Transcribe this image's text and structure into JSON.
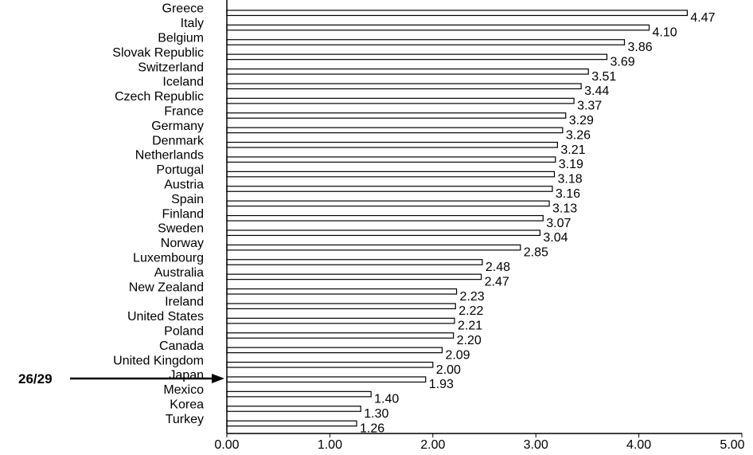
{
  "chart_data": {
    "type": "bar",
    "orientation": "horizontal",
    "categories": [
      "Greece",
      "Italy",
      "Belgium",
      "Slovak Republic",
      "Switzerland",
      "Iceland",
      "Czech Republic",
      "France",
      "Germany",
      "Denmark",
      "Netherlands",
      "Portugal",
      "Austria",
      "Spain",
      "Finland",
      "Sweden",
      "Norway",
      "Luxembourg",
      "Australia",
      "New Zealand",
      "Ireland",
      "United States",
      "Poland",
      "Canada",
      "United Kingdom",
      "Japan",
      "Mexico",
      "Korea",
      "Turkey"
    ],
    "values": [
      4.47,
      4.1,
      3.86,
      3.69,
      3.51,
      3.44,
      3.37,
      3.29,
      3.26,
      3.21,
      3.19,
      3.18,
      3.16,
      3.13,
      3.07,
      3.04,
      2.85,
      2.48,
      2.47,
      2.23,
      2.22,
      2.21,
      2.2,
      2.09,
      2.0,
      1.93,
      1.4,
      1.3,
      1.26
    ],
    "value_labels": [
      "4.47",
      "4.10",
      "3.86",
      "3.69",
      "3.51",
      "3.44",
      "3.37",
      "3.29",
      "3.26",
      "3.21",
      "3.19",
      "3.18",
      "3.16",
      "3.13",
      "3.07",
      "3.04",
      "2.85",
      "2.48",
      "2.47",
      "2.23",
      "2.22",
      "2.21",
      "2.20",
      "2.09",
      "2.00",
      "1.93",
      "1.40",
      "1.30",
      "1.26"
    ],
    "xlim": [
      0,
      5
    ],
    "x_ticks": [
      "0.00",
      "1.00",
      "2.00",
      "3.00",
      "4.00",
      "5.00"
    ],
    "grid": false,
    "annotation": {
      "text": "26/29",
      "target": "Japan"
    }
  },
  "colors": {
    "bar_fill": "#ffffff",
    "bar_stroke": "#000000",
    "text": "#000000"
  }
}
